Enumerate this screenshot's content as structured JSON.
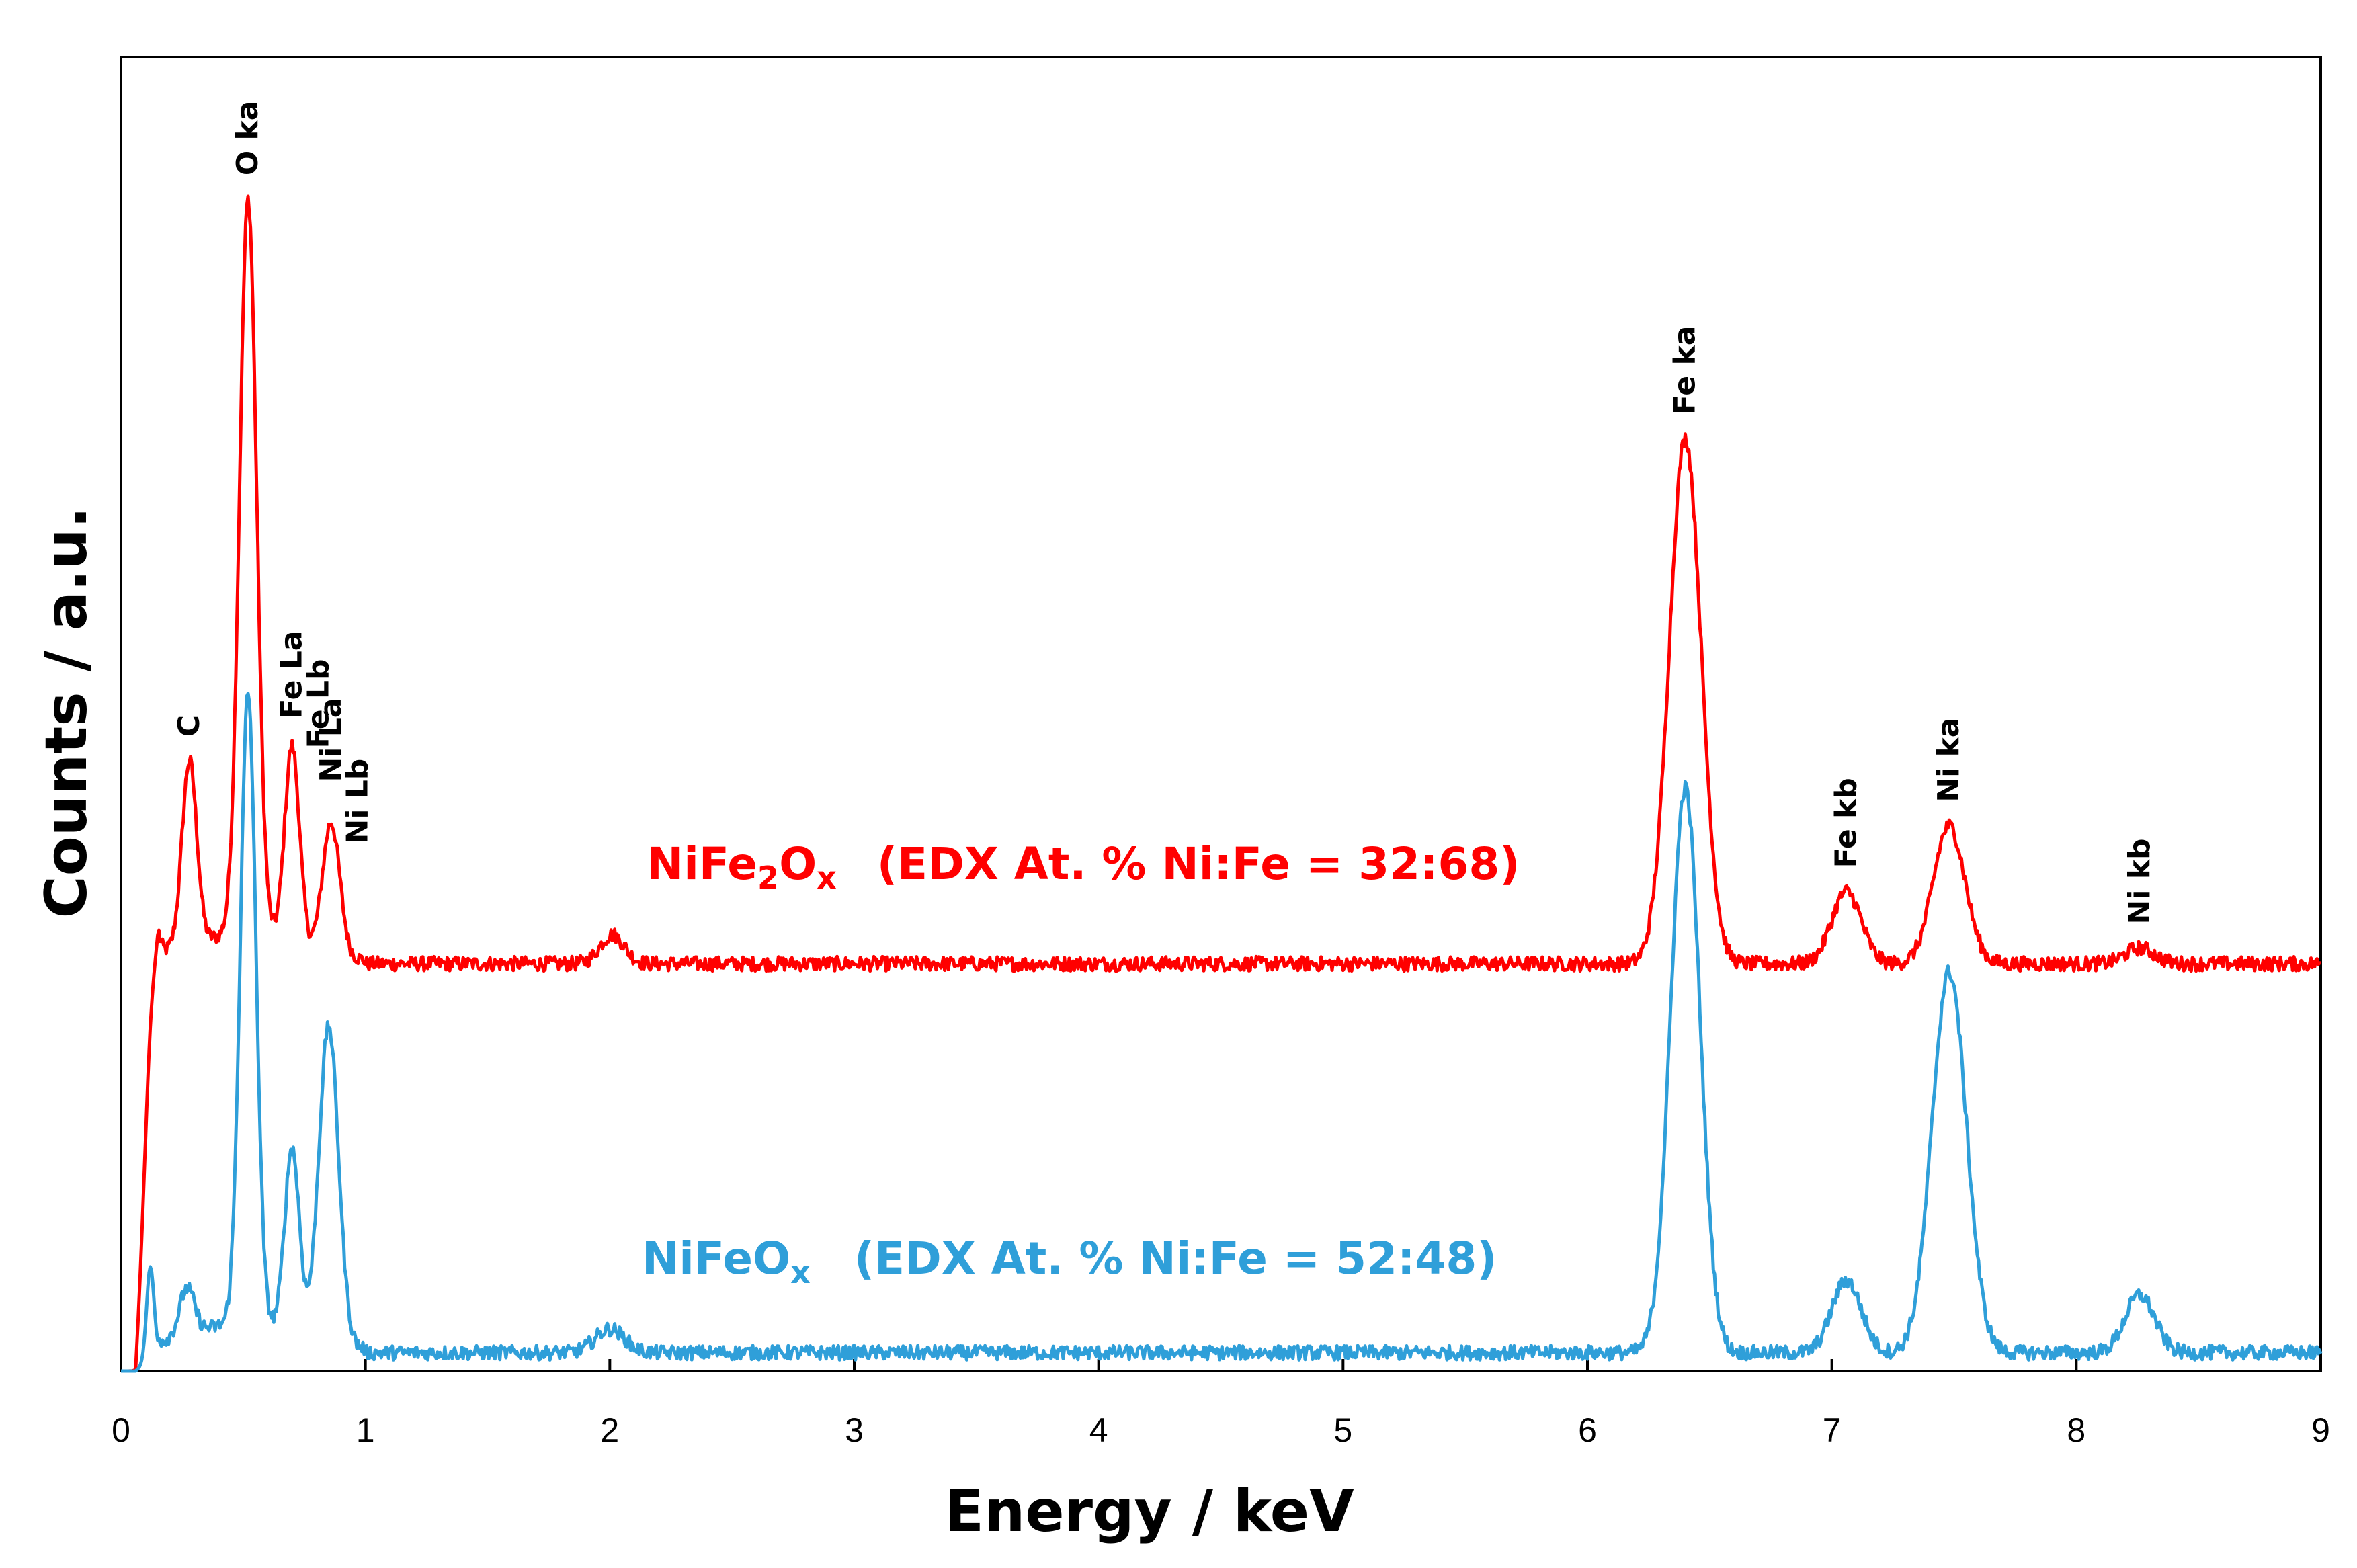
{
  "chart_data": {
    "type": "line",
    "title": "",
    "xlabel": "Energy / keV",
    "ylabel": "Counts / a.u.",
    "xlim": [
      0,
      9
    ],
    "ylim": [
      0,
      100
    ],
    "x_ticks": [
      "0",
      "1",
      "2",
      "3",
      "4",
      "5",
      "6",
      "7",
      "8",
      "9"
    ],
    "grid": false,
    "series": [
      {
        "name": "NiFe2Ox",
        "label_prefix": "NiFe",
        "label_sub1": "2",
        "label_mid": "O",
        "label_sub2": "x",
        "label_detail": "(EDX At. % Ni:Fe = 32:68)",
        "color": "#ff0000",
        "baseline": 31,
        "peaks": [
          {
            "e": 0.12,
            "h": 5.5,
            "w": 0.022
          },
          {
            "e": 0.28,
            "h": 14,
            "w": 0.03
          },
          {
            "e": 0.52,
            "h": 56,
            "w": 0.035
          },
          {
            "e": 0.7,
            "h": 15,
            "w": 0.03
          },
          {
            "e": 0.86,
            "h": 10,
            "w": 0.035
          },
          {
            "e": 2.01,
            "h": 2.2,
            "w": 0.05
          },
          {
            "e": 6.4,
            "h": 40,
            "w": 0.065
          },
          {
            "e": 7.06,
            "h": 5.5,
            "w": 0.06
          },
          {
            "e": 7.48,
            "h": 10.5,
            "w": 0.065
          },
          {
            "e": 8.26,
            "h": 1.2,
            "w": 0.06
          }
        ]
      },
      {
        "name": "NiFeOx",
        "label_prefix": "NiFeO",
        "label_sub1": "x",
        "label_mid": "",
        "label_sub2": "",
        "label_detail": "(EDX At. % Ni:Fe = 52:48)",
        "color": "#2f9fd9",
        "baseline": 1.4,
        "peaks": [
          {
            "e": 0.12,
            "h": 7,
            "w": 0.015
          },
          {
            "e": 0.27,
            "h": 3.5,
            "w": 0.03
          },
          {
            "e": 0.52,
            "h": 48,
            "w": 0.032
          },
          {
            "e": 0.7,
            "h": 14,
            "w": 0.03
          },
          {
            "e": 0.85,
            "h": 24,
            "w": 0.04
          },
          {
            "e": 2.0,
            "h": 1.8,
            "w": 0.06
          },
          {
            "e": 6.4,
            "h": 43,
            "w": 0.06
          },
          {
            "e": 7.06,
            "h": 5.5,
            "w": 0.06
          },
          {
            "e": 7.48,
            "h": 29,
            "w": 0.07
          },
          {
            "e": 8.26,
            "h": 4.4,
            "w": 0.06
          }
        ]
      }
    ],
    "annotations": [
      {
        "text": "C",
        "e": 0.28
      },
      {
        "text": "O ka",
        "e": 0.52
      },
      {
        "text": "Fe La",
        "e": 0.7
      },
      {
        "text": "Fe Lb",
        "e": 0.81
      },
      {
        "text": "Ni La",
        "e": 0.86
      },
      {
        "text": "Ni Lb",
        "e": 0.97
      },
      {
        "text": "Fe ka",
        "e": 6.4
      },
      {
        "text": "Fe kb",
        "e": 7.06
      },
      {
        "text": "Ni ka",
        "e": 7.48
      },
      {
        "text": "Ni kb",
        "e": 8.26
      }
    ]
  }
}
